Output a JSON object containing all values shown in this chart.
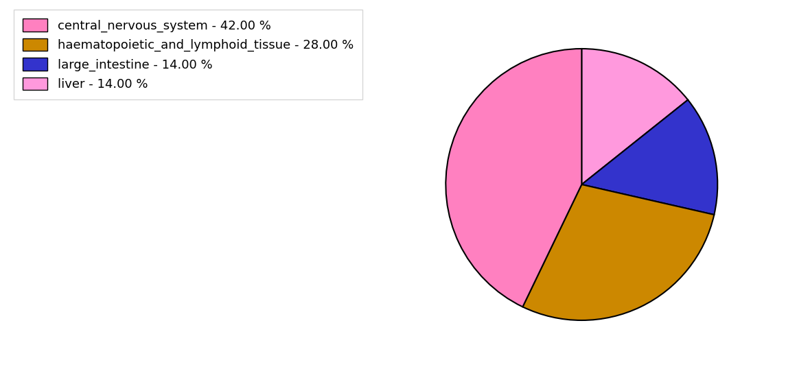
{
  "labels": [
    "liver",
    "large_intestine",
    "haematopoietic_and_lymphoid_tissue",
    "central_nervous_system"
  ],
  "values": [
    14,
    14,
    28,
    42
  ],
  "colors": [
    "#FF99DD",
    "#3333CC",
    "#CC8800",
    "#FF80C0"
  ],
  "legend_labels": [
    "central_nervous_system - 42.00 %",
    "haematopoietic_and_lymphoid_tissue - 28.00 %",
    "large_intestine - 14.00 %",
    "liver - 14.00 %"
  ],
  "legend_colors": [
    "#FF80C0",
    "#CC8800",
    "#3333CC",
    "#FF99DD"
  ],
  "startangle": 90,
  "figsize": [
    11.45,
    5.38
  ],
  "dpi": 100,
  "edgecolor": "black",
  "linewidth": 1.5
}
